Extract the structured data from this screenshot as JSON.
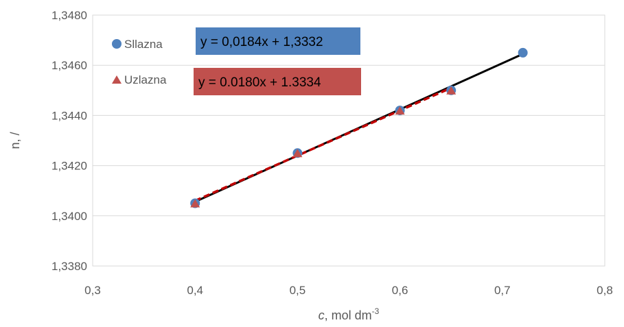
{
  "chart_data": {
    "type": "scatter",
    "xlabel_main": "c",
    "xlabel_rest": ", mol dm",
    "xlabel_sup": "-3",
    "ylabel": "n, /",
    "xlim": [
      0.3,
      0.8
    ],
    "ylim": [
      1.338,
      1.348
    ],
    "x_ticks": [
      "0,3",
      "0,4",
      "0,5",
      "0,6",
      "0,7",
      "0,8"
    ],
    "y_ticks": [
      "1,3380",
      "1,3400",
      "1,3420",
      "1,3440",
      "1,3460",
      "1,3480"
    ],
    "grid": "horizontal",
    "legend_position": "top-left",
    "series": [
      {
        "name": "Sllazna",
        "marker": "circle",
        "color": "#4f81bd",
        "x": [
          0.4,
          0.5,
          0.6,
          0.65,
          0.72
        ],
        "y": [
          1.3405,
          1.3425,
          1.3442,
          1.345,
          1.3465
        ],
        "trendline": {
          "slope": 0.0184,
          "intercept": 1.3332,
          "x_range": [
            0.4,
            0.72
          ],
          "color": "#000000",
          "style": "solid"
        },
        "equation": "y = 0,0184x + 1,3332",
        "equation_bg": "#4f81bd"
      },
      {
        "name": "Uzlazna",
        "marker": "triangle",
        "color": "#c0504d",
        "x": [
          0.4,
          0.5,
          0.6,
          0.65
        ],
        "y": [
          1.3405,
          1.3425,
          1.3442,
          1.345
        ],
        "trendline": {
          "slope": 0.018,
          "intercept": 1.3334,
          "x_range": [
            0.4,
            0.65
          ],
          "color": "#c00000",
          "style": "dashed"
        },
        "equation": "y = 0.0180x + 1.3334",
        "equation_bg": "#c0504d"
      }
    ]
  }
}
